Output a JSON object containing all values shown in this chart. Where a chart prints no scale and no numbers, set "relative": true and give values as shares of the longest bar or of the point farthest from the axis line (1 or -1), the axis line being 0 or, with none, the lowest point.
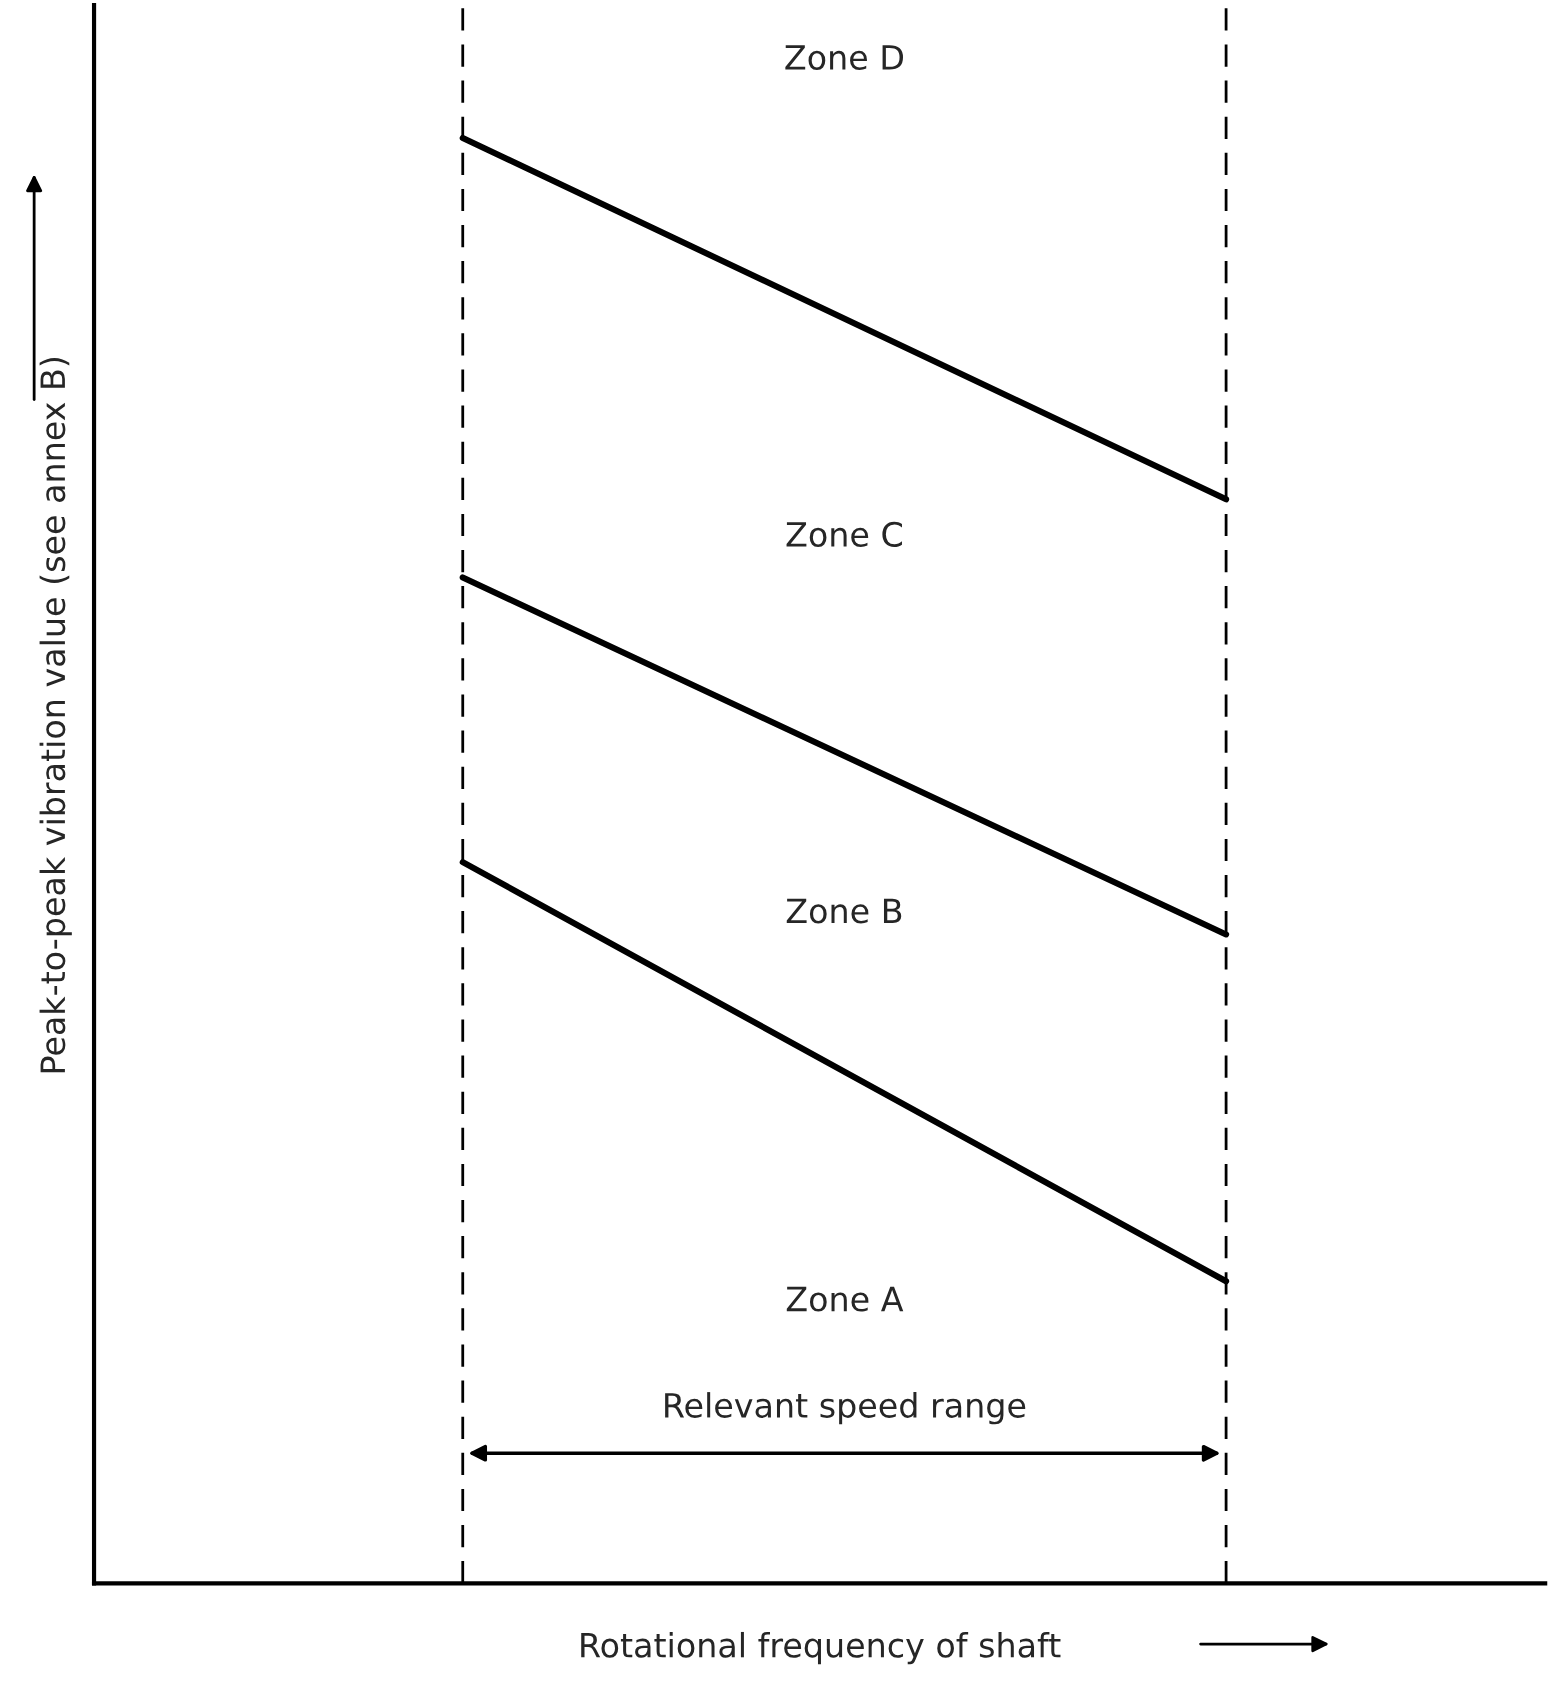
{
  "chart_data": {
    "type": "line",
    "relative": true,
    "xlabel": "Rotational frequency of shaft",
    "ylabel": "Peak-to-peak vibration value (see annex B)",
    "categories": [
      null,
      null
    ],
    "series": [
      {
        "color": "#000000",
        "values": [
          1.0,
          0.75
        ]
      },
      {
        "color": "#000000",
        "values": [
          0.696,
          0.449
        ]
      },
      {
        "color": "#000000",
        "values": [
          0.499,
          0.209
        ]
      }
    ],
    "annotations": [
      "Zone D",
      "Zone C",
      "Zone B",
      "Zone A",
      "Relevant speed range"
    ],
    "grid": false,
    "legend": false,
    "marker": "none",
    "line_style": "solid"
  }
}
